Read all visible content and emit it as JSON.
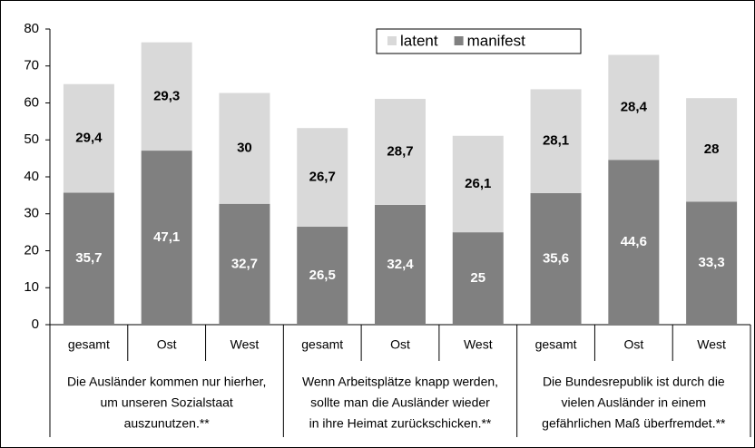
{
  "chart_data": {
    "type": "bar",
    "stacked": true,
    "categories": [
      "gesamt",
      "Ost",
      "West",
      "gesamt",
      "Ost",
      "West",
      "gesamt",
      "Ost",
      "West"
    ],
    "groups": [
      [
        "Die Ausländer kommen nur hierher,",
        "um unseren Sozialstaat",
        "auszunutzen.**"
      ],
      [
        "Wenn Arbeitsplätze knapp werden,",
        "sollte man die Ausländer wieder",
        "in ihre Heimat zurückschicken.**"
      ],
      [
        "Die Bundesrepublik ist durch die",
        "vielen Ausländer in einem",
        "gefährlichen Maß überfremdet.**"
      ]
    ],
    "series": [
      {
        "name": "latent",
        "color": "#d9d9d9",
        "label_color": "#000000",
        "values": [
          29.4,
          29.3,
          30,
          26.7,
          28.7,
          26.1,
          28.1,
          28.4,
          28
        ],
        "value_labels": [
          "29,4",
          "29,3",
          "30",
          "26,7",
          "28,7",
          "26,1",
          "28,1",
          "28,4",
          "28"
        ]
      },
      {
        "name": "manifest",
        "color": "#808080",
        "label_color": "#ffffff",
        "values": [
          35.7,
          47.1,
          32.7,
          26.5,
          32.4,
          25,
          35.6,
          44.6,
          33.3
        ],
        "value_labels": [
          "35,7",
          "47,1",
          "32,7",
          "26,5",
          "32,4",
          "25",
          "35,6",
          "44,6",
          "33,3"
        ]
      }
    ],
    "ylim": [
      0,
      80
    ],
    "yticks": [
      0,
      10,
      20,
      30,
      40,
      50,
      60,
      70,
      80
    ],
    "grid": false,
    "legend": "top"
  }
}
